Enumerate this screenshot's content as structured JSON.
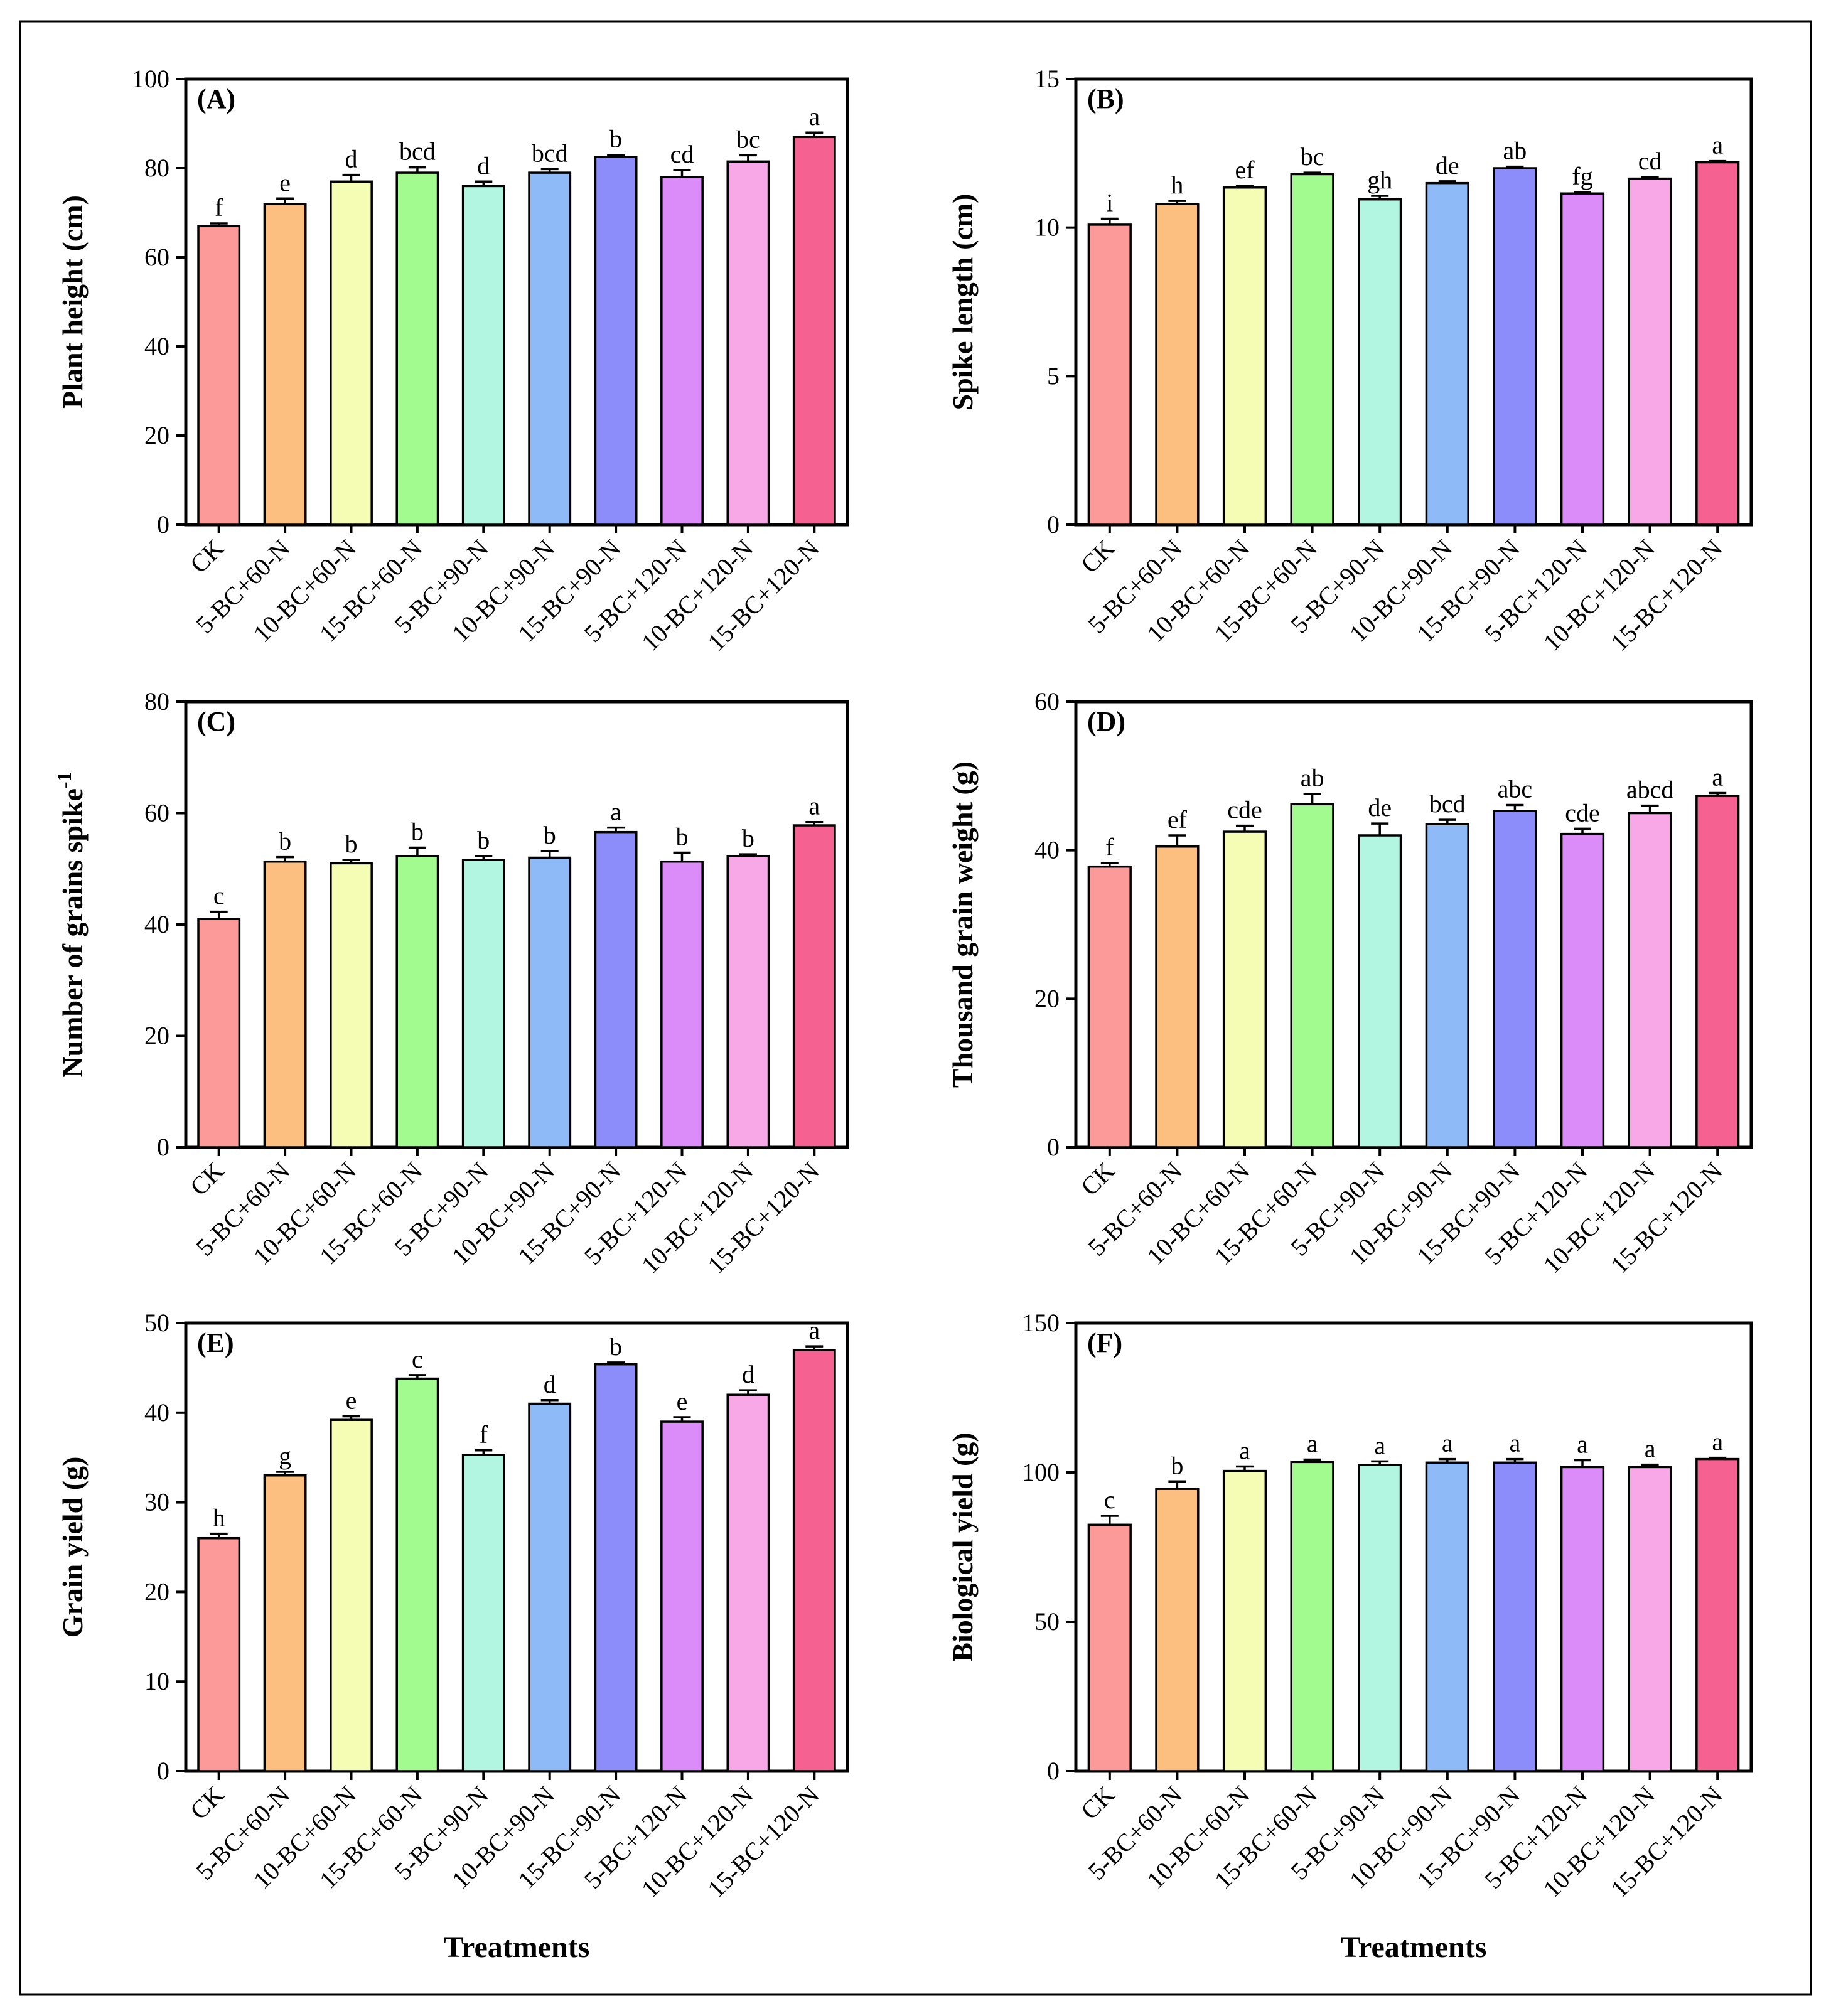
{
  "figure": {
    "xlabel": "Treatments"
  },
  "colors": {
    "bars": [
      "#FB9A99",
      "#FDBF7F",
      "#F4FDB3",
      "#A1FB8E",
      "#B2F5E0",
      "#8EBBF8",
      "#8C8CFA",
      "#DC8CF9",
      "#F8A8E6",
      "#F56291"
    ],
    "edge": "#000000"
  },
  "chart_data": [
    {
      "panel": "(A)",
      "type": "bar",
      "ylabel": "Plant height (cm)",
      "ylim": [
        0,
        100
      ],
      "yticks": [
        0,
        20,
        40,
        60,
        80,
        100
      ],
      "categories": [
        "CK",
        "5-BC+60-N",
        "10-BC+60-N",
        "15-BC+60-N",
        "5-BC+90-N",
        "10-BC+90-N",
        "15-BC+90-N",
        "5-BC+120-N",
        "10-BC+120-N",
        "15-BC+120-N"
      ],
      "values": [
        67,
        72,
        77,
        79,
        76,
        79,
        82.5,
        78,
        81.5,
        87
      ],
      "errors": [
        0.6,
        1.2,
        1.5,
        1.2,
        1.0,
        0.8,
        0.5,
        1.6,
        1.4,
        1.0
      ],
      "letters": [
        "f",
        "e",
        "d",
        "bcd",
        "d",
        "bcd",
        "b",
        "cd",
        "bc",
        "a"
      ]
    },
    {
      "panel": "(B)",
      "type": "bar",
      "ylabel": "Spike length (cm)",
      "ylim": [
        0,
        15
      ],
      "yticks": [
        0,
        5,
        10,
        15
      ],
      "categories": [
        "CK",
        "5-BC+60-N",
        "10-BC+60-N",
        "15-BC+60-N",
        "5-BC+90-N",
        "10-BC+90-N",
        "15-BC+90-N",
        "5-BC+120-N",
        "10-BC+120-N",
        "15-BC+120-N"
      ],
      "values": [
        10.1,
        10.8,
        11.35,
        11.8,
        10.95,
        11.5,
        12.0,
        11.15,
        11.65,
        12.2
      ],
      "errors": [
        0.2,
        0.1,
        0.06,
        0.05,
        0.12,
        0.06,
        0.05,
        0.05,
        0.05,
        0.04
      ],
      "letters": [
        "i",
        "h",
        "ef",
        "bc",
        "gh",
        "de",
        "ab",
        "fg",
        "cd",
        "a"
      ]
    },
    {
      "panel": "(C)",
      "type": "bar",
      "ylabel": "Number of grains spike",
      "ylabel_sup": "-1",
      "ylim": [
        0,
        80
      ],
      "yticks": [
        0,
        20,
        40,
        60,
        80
      ],
      "categories": [
        "CK",
        "5-BC+60-N",
        "10-BC+60-N",
        "15-BC+60-N",
        "5-BC+90-N",
        "10-BC+90-N",
        "15-BC+90-N",
        "5-BC+120-N",
        "10-BC+120-N",
        "15-BC+120-N"
      ],
      "values": [
        41,
        51.3,
        51,
        52.3,
        51.6,
        52,
        56.6,
        51.3,
        52.3,
        57.8
      ],
      "errors": [
        1.3,
        0.8,
        0.6,
        1.5,
        0.7,
        1.2,
        0.8,
        1.6,
        0.3,
        0.6
      ],
      "letters": [
        "c",
        "b",
        "b",
        "b",
        "b",
        "b",
        "a",
        "b",
        "b",
        "a"
      ]
    },
    {
      "panel": "(D)",
      "type": "bar",
      "ylabel": "Thousand grain weight (g)",
      "ylim": [
        0,
        60
      ],
      "yticks": [
        0,
        20,
        40,
        60
      ],
      "categories": [
        "CK",
        "5-BC+60-N",
        "10-BC+60-N",
        "15-BC+60-N",
        "5-BC+90-N",
        "10-BC+90-N",
        "15-BC+90-N",
        "5-BC+120-N",
        "10-BC+120-N",
        "15-BC+120-N"
      ],
      "values": [
        37.8,
        40.5,
        42.5,
        46.2,
        42,
        43.5,
        45.3,
        42.2,
        45,
        47.3
      ],
      "errors": [
        0.5,
        1.5,
        0.8,
        1.4,
        1.6,
        0.6,
        0.8,
        0.7,
        1.0,
        0.4
      ],
      "letters": [
        "f",
        "ef",
        "cde",
        "ab",
        "de",
        "bcd",
        "abc",
        "cde",
        "abcd",
        "a"
      ]
    },
    {
      "panel": "(E)",
      "type": "bar",
      "ylabel": "Grain yield (g)",
      "xlabel": "Treatments",
      "ylim": [
        0,
        50
      ],
      "yticks": [
        0,
        10,
        20,
        30,
        40,
        50
      ],
      "categories": [
        "CK",
        "5-BC+60-N",
        "10-BC+60-N",
        "15-BC+60-N",
        "5-BC+90-N",
        "10-BC+90-N",
        "15-BC+90-N",
        "5-BC+120-N",
        "10-BC+120-N",
        "15-BC+120-N"
      ],
      "values": [
        26,
        33,
        39.2,
        43.8,
        35.3,
        41,
        45.4,
        39,
        42,
        47
      ],
      "errors": [
        0.5,
        0.4,
        0.4,
        0.4,
        0.5,
        0.4,
        0.2,
        0.5,
        0.5,
        0.4
      ],
      "letters": [
        "h",
        "g",
        "e",
        "c",
        "f",
        "d",
        "b",
        "e",
        "d",
        "a"
      ]
    },
    {
      "panel": "(F)",
      "type": "bar",
      "ylabel": "Biological yield (g)",
      "xlabel": "Treatments",
      "ylim": [
        0,
        150
      ],
      "yticks": [
        0,
        50,
        100,
        150
      ],
      "categories": [
        "CK",
        "5-BC+60-N",
        "10-BC+60-N",
        "15-BC+60-N",
        "5-BC+90-N",
        "10-BC+90-N",
        "15-BC+90-N",
        "5-BC+120-N",
        "10-BC+120-N",
        "15-BC+120-N"
      ],
      "values": [
        82.5,
        94.5,
        100.5,
        103.5,
        102.5,
        103.3,
        103.3,
        101.8,
        101.8,
        104.5
      ],
      "errors": [
        3.0,
        2.5,
        1.5,
        0.8,
        1.2,
        1.2,
        1.2,
        2.3,
        0.8,
        0.4
      ],
      "letters": [
        "c",
        "b",
        "a",
        "a",
        "a",
        "a",
        "a",
        "a",
        "a",
        "a"
      ]
    }
  ]
}
